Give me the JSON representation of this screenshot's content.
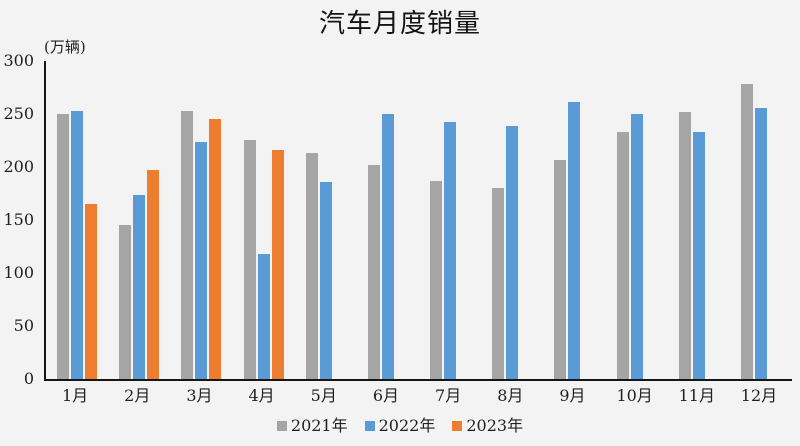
{
  "chart_data": {
    "type": "bar",
    "title": "汽车月度销量",
    "unit_label": "(万辆)",
    "categories": [
      "1月",
      "2月",
      "3月",
      "4月",
      "5月",
      "6月",
      "7月",
      "8月",
      "9月",
      "10月",
      "11月",
      "12月"
    ],
    "series": [
      {
        "name": "2021年",
        "color": "#a5a5a5",
        "values": [
          250.3,
          145.5,
          252.6,
          225.2,
          212.8,
          201.5,
          186.4,
          179.9,
          206.7,
          233.3,
          252.2,
          278.6
        ]
      },
      {
        "name": "2022年",
        "color": "#5b9bd5",
        "values": [
          253.1,
          173.7,
          223.4,
          118.1,
          186.2,
          250.2,
          242.1,
          238.3,
          261.0,
          250.5,
          232.8,
          255.9
        ]
      },
      {
        "name": "2023年",
        "color": "#ed7d31",
        "values": [
          164.9,
          197.6,
          245.1,
          215.9,
          null,
          null,
          null,
          null,
          null,
          null,
          null,
          null
        ]
      }
    ],
    "ylim": [
      0,
      300
    ],
    "yticks": [
      300,
      250,
      200,
      150,
      100,
      50,
      0
    ],
    "grid": false,
    "legend_position": "bottom",
    "axis_color": "#161616",
    "background_color": "#f3f3f3"
  }
}
